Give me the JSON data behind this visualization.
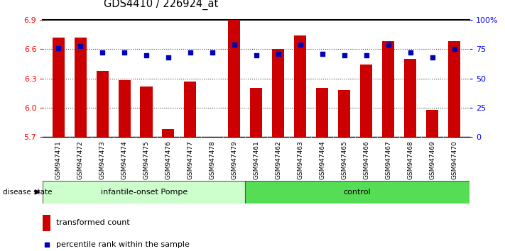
{
  "title": "GDS4410 / 226924_at",
  "samples": [
    "GSM947471",
    "GSM947472",
    "GSM947473",
    "GSM947474",
    "GSM947475",
    "GSM947476",
    "GSM947477",
    "GSM947478",
    "GSM947479",
    "GSM947461",
    "GSM947462",
    "GSM947463",
    "GSM947464",
    "GSM947465",
    "GSM947466",
    "GSM947467",
    "GSM947468",
    "GSM947469",
    "GSM947470"
  ],
  "bar_heights": [
    6.72,
    6.72,
    6.38,
    6.28,
    6.22,
    5.78,
    6.27,
    5.7,
    6.9,
    6.2,
    6.6,
    6.74,
    6.2,
    6.18,
    6.44,
    6.68,
    6.5,
    5.98,
    6.68
  ],
  "percentile_ranks": [
    76,
    78,
    72,
    72,
    70,
    68,
    72,
    72,
    79,
    70,
    71,
    79,
    71,
    70,
    70,
    79,
    72,
    68,
    75
  ],
  "ylim_left": [
    5.7,
    6.9
  ],
  "ylim_right": [
    0,
    100
  ],
  "yticks_left": [
    5.7,
    6.0,
    6.3,
    6.6,
    6.9
  ],
  "yticks_right": [
    0,
    25,
    50,
    75,
    100
  ],
  "ytick_labels_right": [
    "0",
    "25",
    "50",
    "75",
    "100%"
  ],
  "bar_color": "#cc0000",
  "dot_color": "#0000bb",
  "group1_label": "infantile-onset Pompe",
  "group2_label": "control",
  "group1_color": "#ccffcc",
  "group2_color": "#55dd55",
  "group1_n": 9,
  "group2_n": 10,
  "legend_bar_label": "transformed count",
  "legend_dot_label": "percentile rank within the sample",
  "xtick_bg_color": "#cccccc",
  "disease_state_label": "disease state"
}
